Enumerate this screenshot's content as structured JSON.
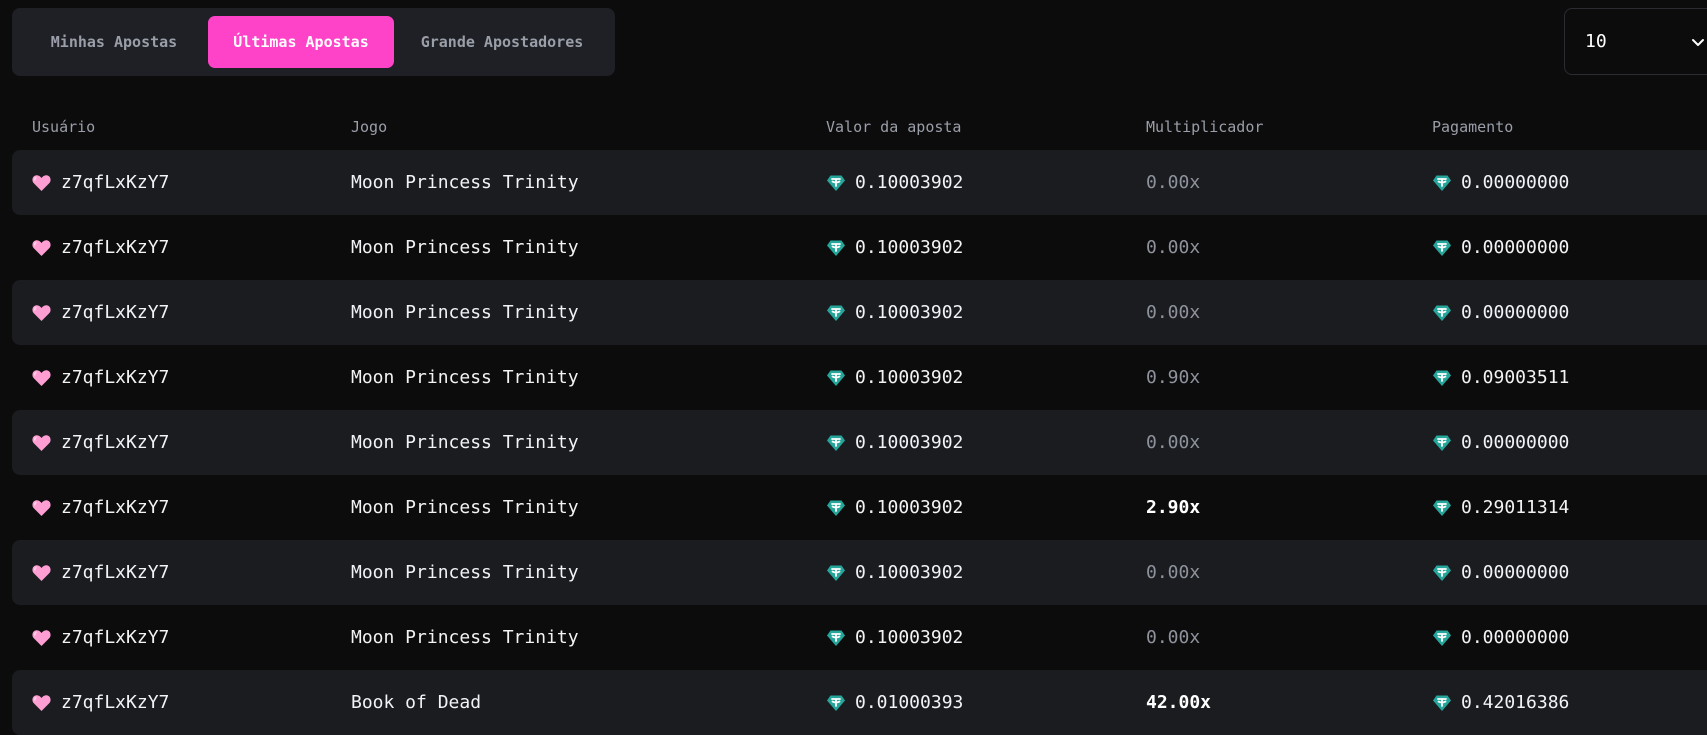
{
  "tabs": [
    {
      "label": "Minhas Apostas",
      "active": false
    },
    {
      "label": "Últimas Apostas",
      "active": true
    },
    {
      "label": "Grande Apostadores",
      "active": false
    }
  ],
  "page_size_select": {
    "value": "10"
  },
  "table": {
    "headers": {
      "user": "Usuário",
      "game": "Jogo",
      "bet": "Valor da aposta",
      "multiplier": "Multiplicador",
      "payout": "Pagamento"
    },
    "rows": [
      {
        "user": "z7qfLxKzY7",
        "game": "Moon Princess Trinity",
        "bet": "0.10003902",
        "multiplier": "0.00x",
        "payout": "0.00000000"
      },
      {
        "user": "z7qfLxKzY7",
        "game": "Moon Princess Trinity",
        "bet": "0.10003902",
        "multiplier": "0.00x",
        "payout": "0.00000000"
      },
      {
        "user": "z7qfLxKzY7",
        "game": "Moon Princess Trinity",
        "bet": "0.10003902",
        "multiplier": "0.00x",
        "payout": "0.00000000"
      },
      {
        "user": "z7qfLxKzY7",
        "game": "Moon Princess Trinity",
        "bet": "0.10003902",
        "multiplier": "0.90x",
        "payout": "0.09003511"
      },
      {
        "user": "z7qfLxKzY7",
        "game": "Moon Princess Trinity",
        "bet": "0.10003902",
        "multiplier": "0.00x",
        "payout": "0.00000000"
      },
      {
        "user": "z7qfLxKzY7",
        "game": "Moon Princess Trinity",
        "bet": "0.10003902",
        "multiplier": "2.90x",
        "payout": "0.29011314"
      },
      {
        "user": "z7qfLxKzY7",
        "game": "Moon Princess Trinity",
        "bet": "0.10003902",
        "multiplier": "0.00x",
        "payout": "0.00000000"
      },
      {
        "user": "z7qfLxKzY7",
        "game": "Moon Princess Trinity",
        "bet": "0.10003902",
        "multiplier": "0.00x",
        "payout": "0.00000000"
      },
      {
        "user": "z7qfLxKzY7",
        "game": "Book of Dead",
        "bet": "0.01000393",
        "multiplier": "42.00x",
        "payout": "0.42016386"
      }
    ]
  },
  "icons": {
    "user_badge": "heart-icon",
    "currency": "tether-coin-icon",
    "select_arrow": "chevron-down-icon"
  },
  "colors": {
    "accent": "#ff43c9",
    "background": "#0c0c0d",
    "row_stripe": "#1a1c20",
    "coin": "#26a69a",
    "heart": "#ff9ed2"
  }
}
